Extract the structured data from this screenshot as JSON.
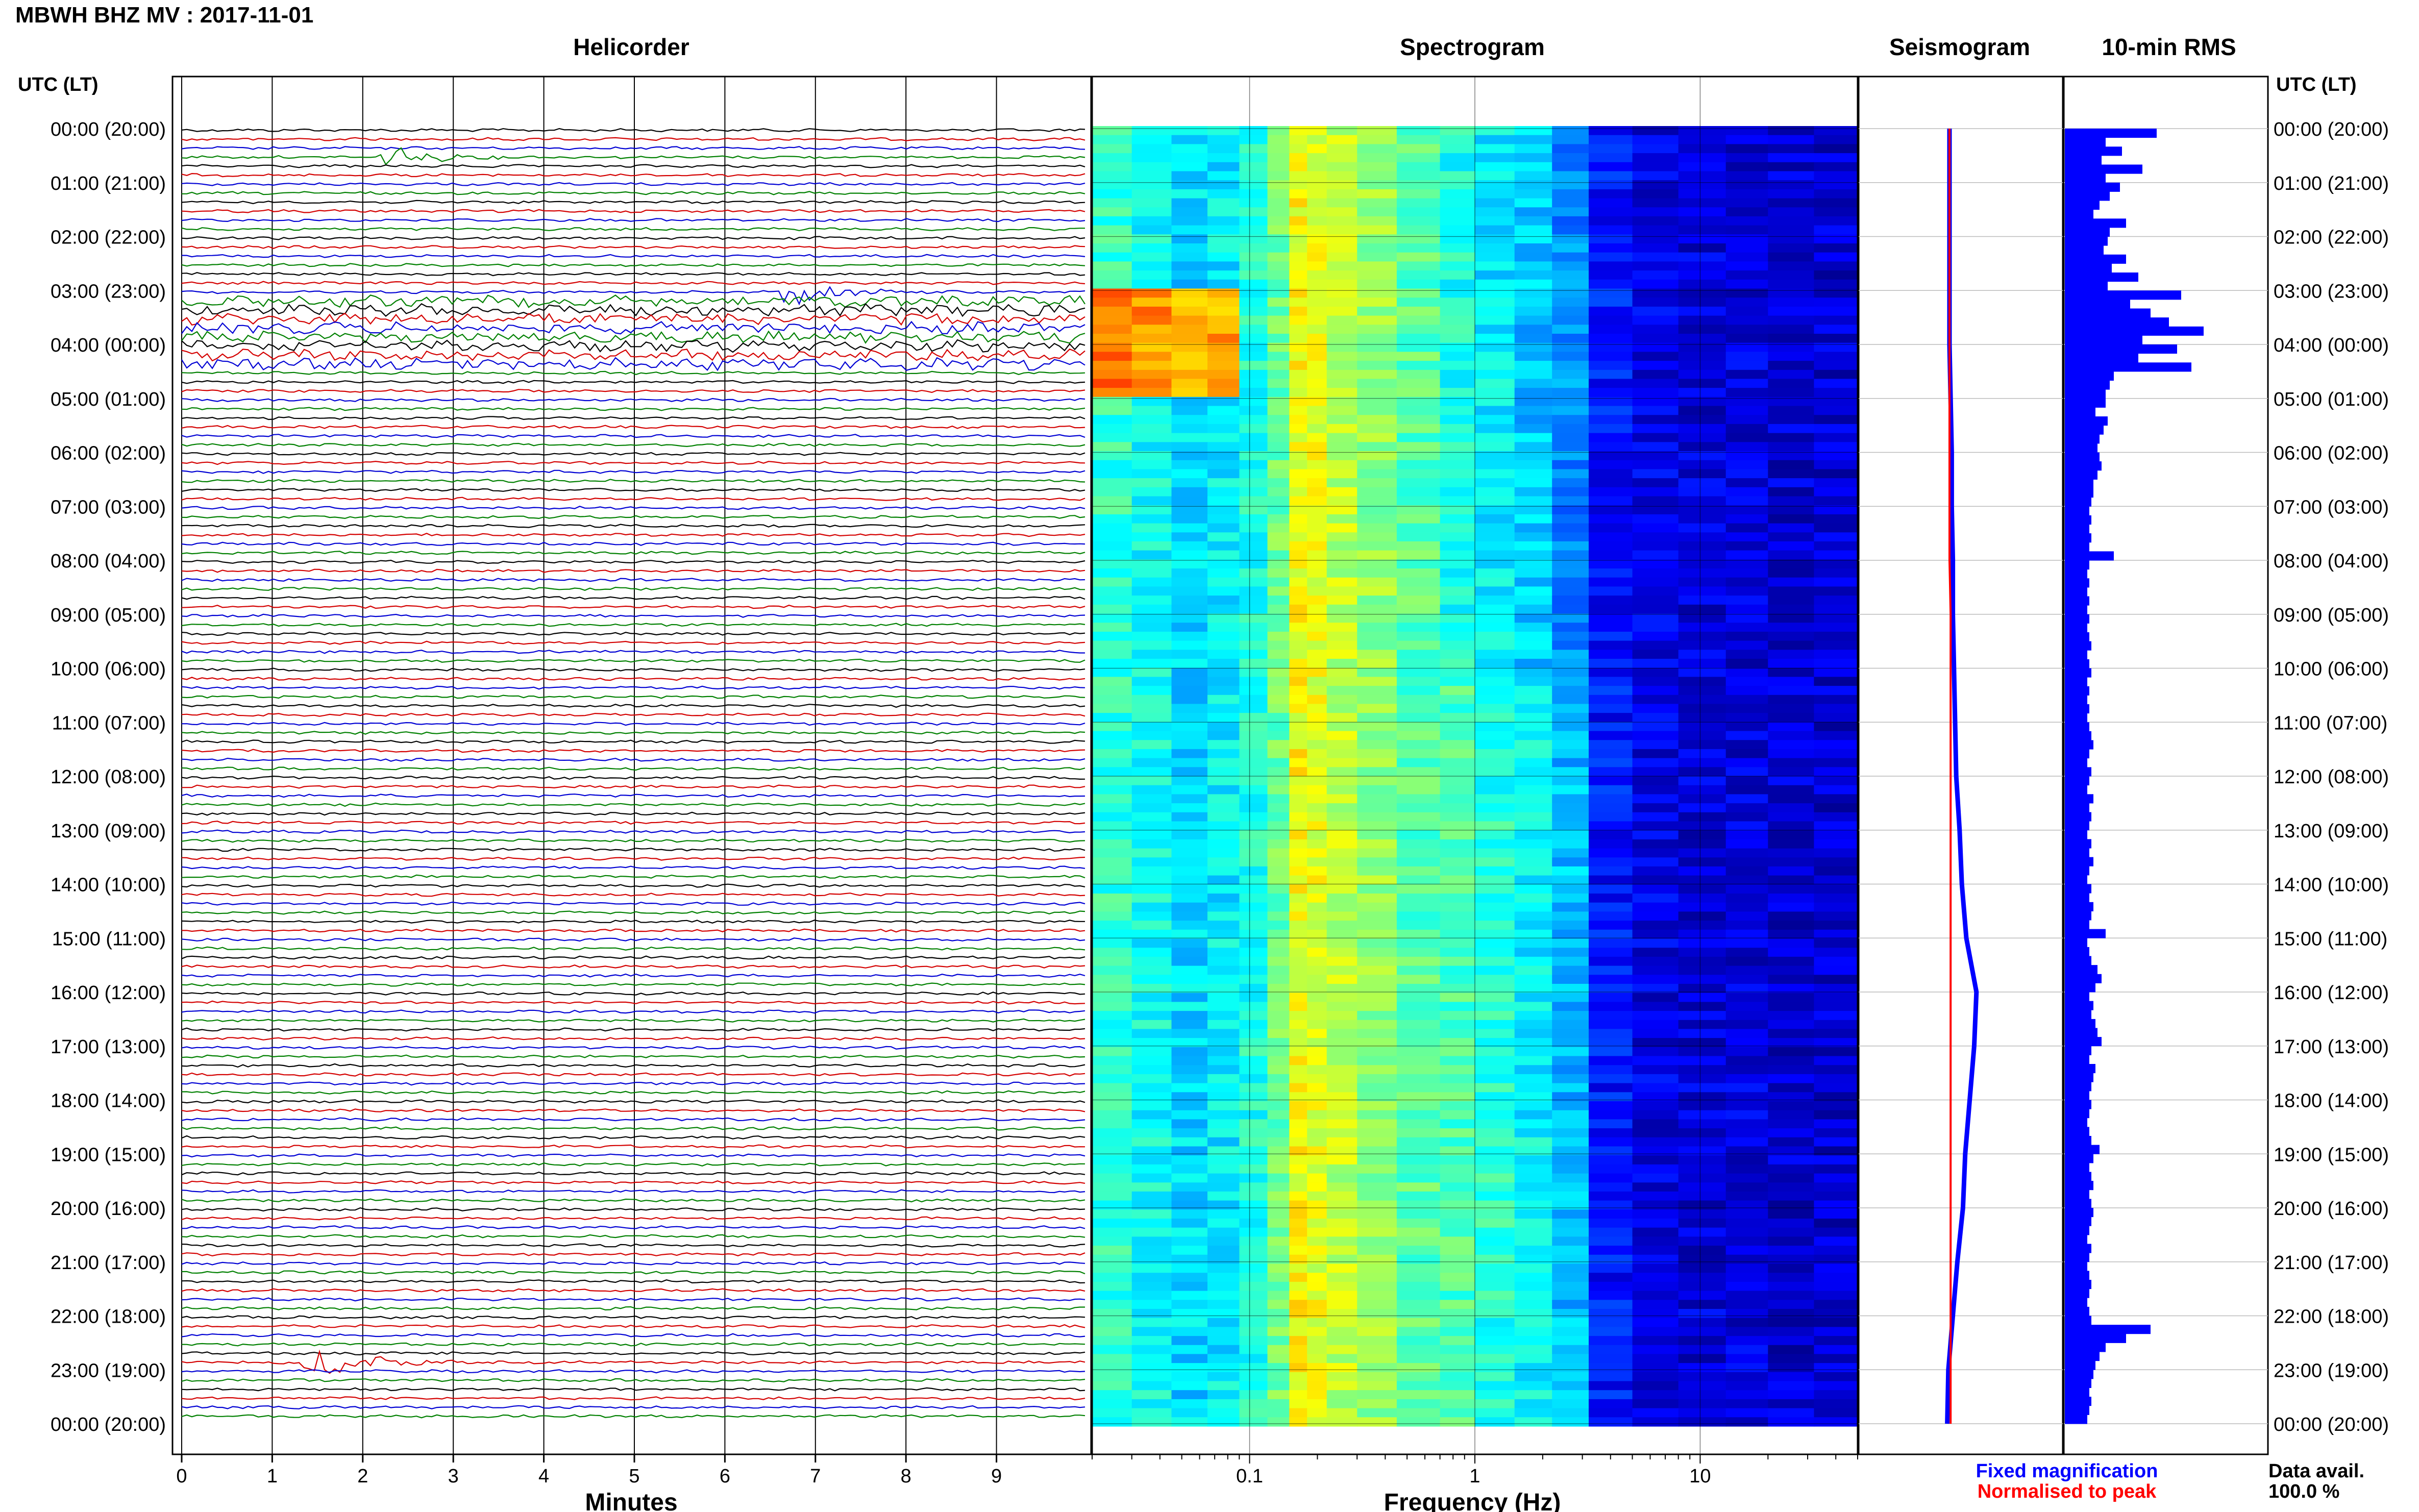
{
  "header": {
    "title": "MBWH BHZ MV : 2017-11-01",
    "utc_label_left": "UTC (LT)",
    "utc_label_right": "UTC (LT)"
  },
  "panels": {
    "helicorder": "Helicorder",
    "spectrogram": "Spectrogram",
    "seismogram": "Seismogram",
    "rms": "10-min RMS"
  },
  "time_labels": [
    "00:00 (20:00)",
    "01:00 (21:00)",
    "02:00 (22:00)",
    "03:00 (23:00)",
    "04:00 (00:00)",
    "05:00 (01:00)",
    "06:00 (02:00)",
    "07:00 (03:00)",
    "08:00 (04:00)",
    "09:00 (05:00)",
    "10:00 (06:00)",
    "11:00 (07:00)",
    "12:00 (08:00)",
    "13:00 (09:00)",
    "14:00 (10:00)",
    "15:00 (11:00)",
    "16:00 (12:00)",
    "17:00 (13:00)",
    "18:00 (14:00)",
    "19:00 (15:00)",
    "20:00 (16:00)",
    "21:00 (17:00)",
    "22:00 (18:00)",
    "23:00 (19:00)",
    "00:00 (20:00)"
  ],
  "footer": {
    "legend_fixed": "Fixed magnification",
    "legend_normalised": "Normalised to peak",
    "data_avail_label": "Data avail.",
    "data_avail_value": "100.0 %"
  },
  "colors": {
    "trace_cycle": [
      "#000000",
      "#d40000",
      "#0000d4",
      "#008000"
    ],
    "fixed": "#0000ff",
    "normalised": "#ff0000",
    "rms_bar": "#0000ff",
    "spectrogram_low": "#00007f",
    "spectrogram_high": "#ff4000"
  },
  "chart_data": [
    {
      "type": "line",
      "name": "helicorder",
      "title": "Helicorder",
      "xlabel": "Minutes",
      "x_ticks": [
        "0",
        "1",
        "2",
        "3",
        "4",
        "5",
        "6",
        "7",
        "8",
        "9"
      ],
      "xlim": [
        0,
        10
      ],
      "lines_per_hour": 6,
      "hours": 24,
      "events": [
        {
          "hour_row": 0.5,
          "minute": 2.4,
          "amplitude": "small"
        },
        {
          "hour_row": 3.0,
          "minute": 6.9,
          "amplitude": "medium"
        },
        {
          "hour_row": 22.8,
          "minute": 1.6,
          "amplitude": "large"
        }
      ]
    },
    {
      "type": "heatmap",
      "name": "spectrogram",
      "title": "Spectrogram",
      "xlabel": "Frequency (Hz)",
      "x_scale": "log",
      "xlim": [
        0.02,
        50
      ],
      "x_ticks": [
        "0.1",
        "1",
        "10"
      ]
    },
    {
      "type": "line",
      "name": "seismogram",
      "title": "Seismogram",
      "series": [
        {
          "name": "Fixed magnification",
          "values": [
            0.0,
            0.0,
            0.0,
            0.0,
            0.0,
            0.01,
            0.02,
            0.02,
            0.03,
            0.03,
            0.04,
            0.05,
            0.06,
            0.09,
            0.11,
            0.15,
            0.24,
            0.22,
            0.18,
            0.14,
            0.12,
            0.07,
            0.03,
            -0.01,
            -0.02
          ]
        },
        {
          "name": "Normalised to peak",
          "values": [
            0.0,
            0.0,
            0.0,
            0.0,
            0.0,
            0.0,
            0.0,
            0.0,
            0.0,
            0.01,
            0.01,
            0.01,
            0.01,
            0.01,
            0.01,
            0.01,
            0.01,
            0.01,
            0.01,
            0.01,
            0.01,
            0.01,
            0.01,
            0.01,
            0.01
          ]
        }
      ]
    },
    {
      "type": "bar",
      "name": "rms",
      "title": "10-min RMS",
      "values": [
        0.45,
        0.2,
        0.28,
        0.18,
        0.38,
        0.2,
        0.27,
        0.22,
        0.17,
        0.14,
        0.3,
        0.22,
        0.21,
        0.19,
        0.3,
        0.23,
        0.36,
        0.21,
        0.57,
        0.32,
        0.42,
        0.51,
        0.68,
        0.38,
        0.55,
        0.36,
        0.62,
        0.24,
        0.22,
        0.2,
        0.2,
        0.15,
        0.21,
        0.19,
        0.17,
        0.16,
        0.17,
        0.18,
        0.16,
        0.14,
        0.14,
        0.13,
        0.12,
        0.13,
        0.12,
        0.13,
        0.12,
        0.24,
        0.12,
        0.11,
        0.12,
        0.11,
        0.12,
        0.11,
        0.12,
        0.11,
        0.12,
        0.13,
        0.11,
        0.12,
        0.13,
        0.11,
        0.12,
        0.11,
        0.12,
        0.11,
        0.12,
        0.13,
        0.14,
        0.12,
        0.11,
        0.13,
        0.12,
        0.11,
        0.14,
        0.12,
        0.13,
        0.12,
        0.11,
        0.13,
        0.12,
        0.14,
        0.12,
        0.11,
        0.13,
        0.12,
        0.14,
        0.13,
        0.12,
        0.2,
        0.11,
        0.12,
        0.13,
        0.16,
        0.18,
        0.15,
        0.12,
        0.14,
        0.13,
        0.15,
        0.16,
        0.18,
        0.13,
        0.12,
        0.15,
        0.14,
        0.13,
        0.12,
        0.13,
        0.12,
        0.11,
        0.12,
        0.13,
        0.17,
        0.14,
        0.12,
        0.13,
        0.14,
        0.12,
        0.13,
        0.14,
        0.13,
        0.12,
        0.11,
        0.13,
        0.12,
        0.11,
        0.12,
        0.13,
        0.12,
        0.11,
        0.12,
        0.13,
        0.42,
        0.3,
        0.2,
        0.17,
        0.15,
        0.14,
        0.13,
        0.12,
        0.13,
        0.12,
        0.11
      ]
    }
  ]
}
